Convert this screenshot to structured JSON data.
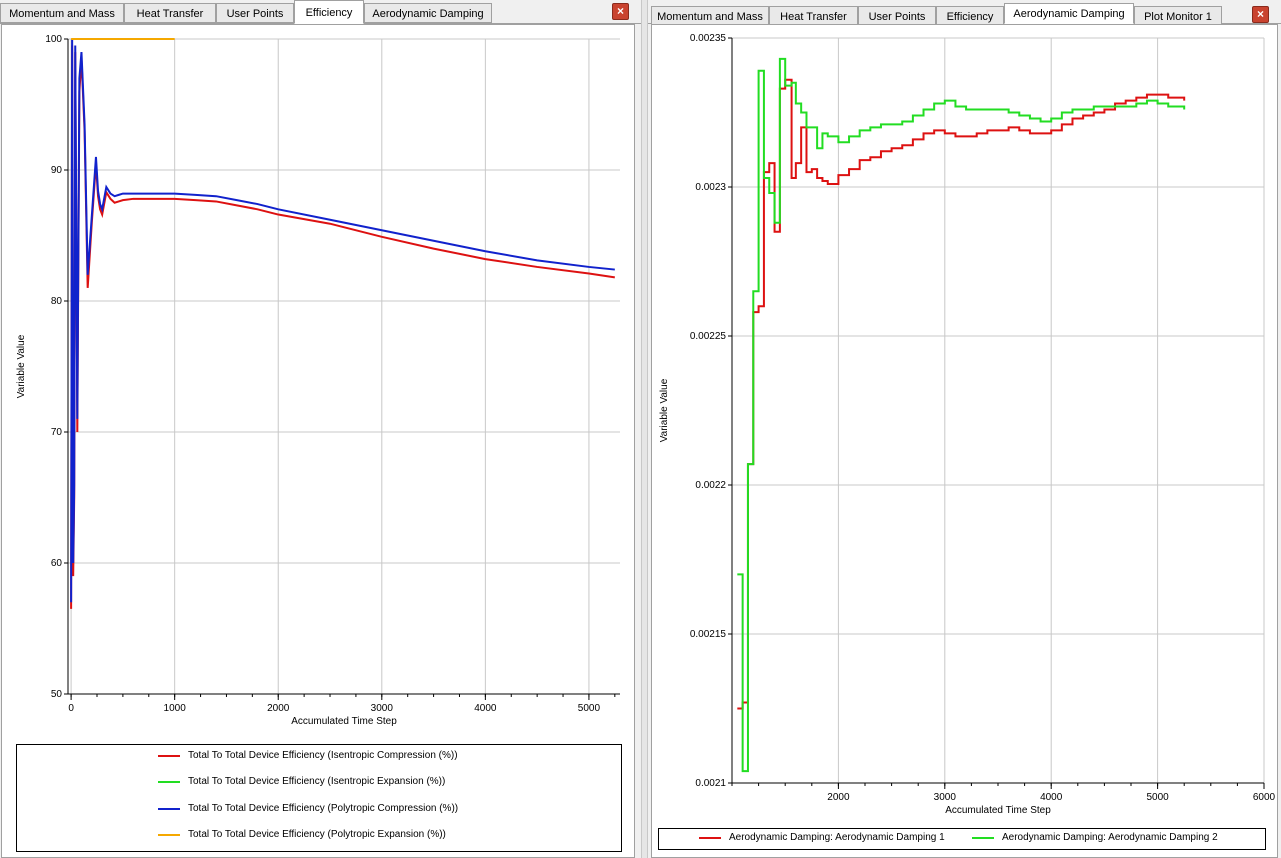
{
  "left_panel": {
    "tabs": [
      {
        "label": "Momentum and Mass",
        "active": false
      },
      {
        "label": "Heat Transfer",
        "active": false
      },
      {
        "label": "User Points",
        "active": false
      },
      {
        "label": "Efficiency",
        "active": true
      },
      {
        "label": "Aerodynamic Damping",
        "active": false
      }
    ],
    "close_label": "×"
  },
  "right_panel": {
    "tabs": [
      {
        "label": "Momentum and Mass",
        "active": false
      },
      {
        "label": "Heat Transfer",
        "active": false
      },
      {
        "label": "User Points",
        "active": false
      },
      {
        "label": "Efficiency",
        "active": false
      },
      {
        "label": "Aerodynamic Damping",
        "active": true
      },
      {
        "label": "Plot Monitor 1",
        "active": false
      }
    ],
    "close_label": "×"
  },
  "chart_data": [
    {
      "type": "line",
      "xlabel": "Accumulated Time Step",
      "ylabel": "Variable Value",
      "xlim": [
        -30,
        5300
      ],
      "ylim": [
        50,
        100
      ],
      "xticks": [
        0,
        1000,
        2000,
        3000,
        4000,
        5000
      ],
      "yticks": [
        50,
        60,
        70,
        80,
        90,
        100
      ],
      "grid": true,
      "legend_position": "bottom",
      "colors": {
        "red": "#dd1111",
        "green": "#22dd22",
        "blue": "#1122cc",
        "orange": "#f5a800"
      },
      "series": [
        {
          "name": "Total To Total Device Efficiency (Isentropic Compression (%))",
          "color": "#dd1111",
          "x": [
            0,
            10,
            20,
            30,
            40,
            60,
            80,
            100,
            130,
            160,
            200,
            240,
            260,
            280,
            300,
            340,
            380,
            420,
            460,
            500,
            600,
            800,
            1000,
            1200,
            1400,
            1600,
            1800,
            2000,
            2500,
            3000,
            3500,
            4000,
            4500,
            5000,
            5250
          ],
          "y": [
            56.5,
            99.5,
            59,
            65,
            99,
            70,
            96,
            98.5,
            93,
            81,
            86,
            90.5,
            88,
            87,
            86.6,
            88.3,
            87.8,
            87.5,
            87.6,
            87.7,
            87.8,
            87.8,
            87.8,
            87.7,
            87.6,
            87.3,
            87.0,
            86.6,
            85.9,
            84.9,
            84.0,
            83.2,
            82.6,
            82.1,
            81.8
          ]
        },
        {
          "name": "Total To Total Device Efficiency (Isentropic Expansion (%))",
          "color": "#22dd22",
          "x": [],
          "y": []
        },
        {
          "name": "Total To Total Device Efficiency (Polytropic Compression (%))",
          "color": "#1122cc",
          "x": [
            0,
            10,
            20,
            30,
            40,
            60,
            80,
            100,
            130,
            160,
            200,
            240,
            260,
            280,
            300,
            340,
            380,
            420,
            460,
            500,
            600,
            800,
            1000,
            1200,
            1400,
            1600,
            1800,
            2000,
            2500,
            3000,
            3500,
            4000,
            4500,
            5000,
            5250
          ],
          "y": [
            57,
            100,
            60,
            66,
            99.5,
            71,
            97,
            99,
            93.5,
            82,
            86.5,
            91,
            88.4,
            87.4,
            87,
            88.7,
            88.2,
            88,
            88.1,
            88.2,
            88.2,
            88.2,
            88.2,
            88.1,
            88.0,
            87.7,
            87.4,
            87.0,
            86.2,
            85.4,
            84.6,
            83.8,
            83.1,
            82.6,
            82.4
          ]
        },
        {
          "name": "Total To Total Device Efficiency (Polytropic Expansion (%))",
          "color": "#f5a800",
          "x": [
            0,
            1000
          ],
          "y": [
            100,
            100
          ]
        }
      ]
    },
    {
      "type": "line",
      "xlabel": "Accumulated Time Step",
      "ylabel": "Variable Value",
      "xlim": [
        1000,
        6000
      ],
      "ylim": [
        0.0021,
        0.00235
      ],
      "xticks": [
        2000,
        3000,
        4000,
        5000,
        6000
      ],
      "yticks": [
        0.0021,
        0.00215,
        0.0022,
        0.00225,
        0.0023,
        0.00235
      ],
      "ytick_labels": [
        "0.0021",
        "0.00215",
        "0.0022",
        "0.00225",
        "0.0023",
        "0.00235"
      ],
      "grid": true,
      "legend_position": "bottom",
      "series": [
        {
          "name": "Aerodynamic Damping: Aerodynamic Damping 1",
          "color": "#dd1111",
          "step": true,
          "x": [
            1050,
            1100,
            1150,
            1200,
            1250,
            1300,
            1350,
            1400,
            1450,
            1500,
            1560,
            1600,
            1650,
            1700,
            1750,
            1800,
            1850,
            1900,
            2000,
            2100,
            2200,
            2300,
            2400,
            2500,
            2600,
            2700,
            2800,
            2900,
            3000,
            3100,
            3200,
            3300,
            3400,
            3500,
            3600,
            3700,
            3800,
            3900,
            4000,
            4100,
            4200,
            4300,
            4400,
            4500,
            4600,
            4700,
            4800,
            4900,
            5000,
            5100,
            5250
          ],
          "y": [
            0.002125,
            0.002127,
            0.002207,
            0.002258,
            0.00226,
            0.002305,
            0.002308,
            0.002285,
            0.002333,
            0.002336,
            0.002303,
            0.002308,
            0.00232,
            0.002305,
            0.002306,
            0.002303,
            0.002302,
            0.002301,
            0.002304,
            0.002306,
            0.002309,
            0.00231,
            0.002312,
            0.002313,
            0.002314,
            0.002316,
            0.002318,
            0.002319,
            0.002318,
            0.002317,
            0.002317,
            0.002318,
            0.002319,
            0.002319,
            0.00232,
            0.002319,
            0.002318,
            0.002318,
            0.002319,
            0.002321,
            0.002323,
            0.002324,
            0.002325,
            0.002326,
            0.002328,
            0.002329,
            0.00233,
            0.002331,
            0.002331,
            0.00233,
            0.002329
          ]
        },
        {
          "name": "Aerodynamic Damping: Aerodynamic Damping 2",
          "color": "#22dd22",
          "step": true,
          "x": [
            1050,
            1100,
            1150,
            1200,
            1250,
            1300,
            1350,
            1400,
            1450,
            1500,
            1560,
            1600,
            1650,
            1700,
            1750,
            1800,
            1850,
            1900,
            2000,
            2100,
            2200,
            2300,
            2400,
            2500,
            2600,
            2700,
            2800,
            2900,
            3000,
            3100,
            3200,
            3300,
            3400,
            3500,
            3600,
            3700,
            3800,
            3900,
            4000,
            4100,
            4200,
            4300,
            4400,
            4500,
            4600,
            4700,
            4800,
            4900,
            5000,
            5100,
            5250
          ],
          "y": [
            0.00217,
            0.002104,
            0.002207,
            0.002265,
            0.002339,
            0.002303,
            0.002298,
            0.002288,
            0.002343,
            0.002334,
            0.002335,
            0.002328,
            0.002325,
            0.00232,
            0.00232,
            0.002313,
            0.002318,
            0.002317,
            0.002315,
            0.002317,
            0.002319,
            0.00232,
            0.002321,
            0.002321,
            0.002322,
            0.002324,
            0.002326,
            0.002328,
            0.002329,
            0.002327,
            0.002326,
            0.002326,
            0.002326,
            0.002326,
            0.002325,
            0.002324,
            0.002323,
            0.002322,
            0.002323,
            0.002325,
            0.002326,
            0.002326,
            0.002327,
            0.002327,
            0.002327,
            0.002327,
            0.002328,
            0.002329,
            0.002328,
            0.002327,
            0.002326
          ]
        }
      ]
    }
  ]
}
